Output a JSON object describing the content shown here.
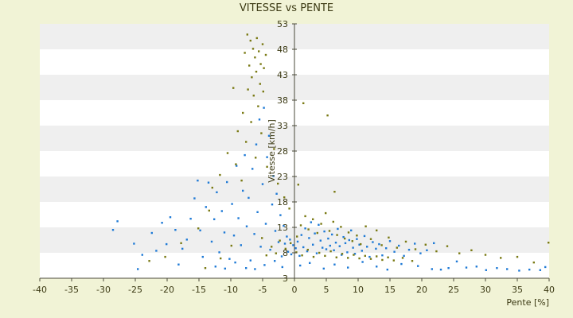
{
  "chart_data": {
    "type": "scatter",
    "title": "VITESSE vs PENTE",
    "xlabel": "Pente [%]",
    "ylabel": "Vitesse [km/h]",
    "xlim": [
      -40,
      40
    ],
    "ylim": [
      3,
      53
    ],
    "x_ticks": [
      -40,
      -35,
      -30,
      -25,
      -20,
      -15,
      -10,
      -5,
      0,
      5,
      10,
      15,
      20,
      25,
      30,
      35,
      40
    ],
    "y_ticks": [
      3,
      8,
      13,
      18,
      23,
      28,
      33,
      38,
      43,
      48,
      53
    ],
    "grid": "horizontal alternating bands",
    "legend": "none",
    "colors": {
      "background": "#f1f3d6",
      "plot_band_light": "#ffffff",
      "plot_band_dark": "#efefef",
      "axis": "#4a4a3a",
      "series_blue": "#1f7ad6",
      "series_olive": "#7a7a14"
    },
    "series": [
      {
        "color": "#1f7ad6",
        "points": [
          [
            -28.5,
            12.5
          ],
          [
            -27.8,
            14.2
          ],
          [
            -25.2,
            9.8
          ],
          [
            -24.6,
            4.8
          ],
          [
            -23.9,
            7.6
          ],
          [
            -22.4,
            11.9
          ],
          [
            -21.7,
            8.4
          ],
          [
            -20.8,
            13.9
          ],
          [
            -20.1,
            9.7
          ],
          [
            -19.5,
            15.0
          ],
          [
            -18.7,
            12.5
          ],
          [
            -18.2,
            5.7
          ],
          [
            -17.6,
            8.8
          ],
          [
            -16.9,
            10.6
          ],
          [
            -16.3,
            14.7
          ],
          [
            -15.7,
            18.7
          ],
          [
            -15.2,
            22.2
          ],
          [
            -14.8,
            12.4
          ],
          [
            -14.4,
            7.2
          ],
          [
            -13.9,
            17.0
          ],
          [
            -13.5,
            21.8
          ],
          [
            -13.0,
            10.2
          ],
          [
            -12.6,
            14.6
          ],
          [
            -12.2,
            19.9
          ],
          [
            -11.8,
            8.1
          ],
          [
            -11.4,
            16.2
          ],
          [
            -11.0,
            12.0
          ],
          [
            -10.6,
            21.9
          ],
          [
            -10.2,
            6.8
          ],
          [
            -9.8,
            17.6
          ],
          [
            -9.5,
            11.4
          ],
          [
            -9.1,
            25.1
          ],
          [
            -8.8,
            14.8
          ],
          [
            -8.4,
            9.5
          ],
          [
            -8.1,
            20.2
          ],
          [
            -7.8,
            27.2
          ],
          [
            -7.5,
            13.2
          ],
          [
            -7.2,
            18.8
          ],
          [
            -6.9,
            6.5
          ],
          [
            -6.6,
            24.5
          ],
          [
            -6.3,
            11.7
          ],
          [
            -6.0,
            29.3
          ],
          [
            -5.8,
            16.0
          ],
          [
            -5.5,
            34.2
          ],
          [
            -5.3,
            9.2
          ],
          [
            -5.0,
            21.5
          ],
          [
            -4.8,
            36.5
          ],
          [
            -4.5,
            13.7
          ],
          [
            -4.3,
            26.8
          ],
          [
            -4.0,
            31.0
          ],
          [
            -3.8,
            8.6
          ],
          [
            -3.5,
            17.5
          ],
          [
            -3.3,
            23.1
          ],
          [
            -3.0,
            12.3
          ],
          [
            -2.8,
            19.6
          ],
          [
            -2.5,
            10.1
          ],
          [
            -2.2,
            15.4
          ],
          [
            -2.0,
            7.3
          ],
          [
            -1.7,
            13.3
          ],
          [
            -1.5,
            9.8
          ],
          [
            -1.2,
            11.2
          ],
          [
            -1.0,
            8.2
          ],
          [
            -0.7,
            10.6
          ],
          [
            -0.5,
            7.7
          ],
          [
            -0.2,
            9.5
          ],
          [
            0.2,
            8.9
          ],
          [
            0.5,
            10.2
          ],
          [
            0.8,
            7.4
          ],
          [
            1.1,
            11.5
          ],
          [
            1.4,
            9.1
          ],
          [
            1.7,
            12.8
          ],
          [
            2.0,
            8.3
          ],
          [
            2.3,
            10.9
          ],
          [
            2.6,
            14.0
          ],
          [
            2.9,
            9.6
          ],
          [
            3.2,
            11.8
          ],
          [
            3.5,
            7.9
          ],
          [
            3.8,
            13.5
          ],
          [
            4.1,
            10.4
          ],
          [
            4.4,
            9.0
          ],
          [
            4.7,
            12.2
          ],
          [
            5.0,
            8.7
          ],
          [
            5.3,
            10.8
          ],
          [
            5.6,
            9.4
          ],
          [
            5.9,
            11.6
          ],
          [
            6.2,
            8.5
          ],
          [
            6.5,
            10.0
          ],
          [
            6.8,
            12.7
          ],
          [
            7.1,
            9.3
          ],
          [
            7.4,
            7.6
          ],
          [
            7.7,
            11.1
          ],
          [
            8.0,
            9.9
          ],
          [
            8.3,
            8.1
          ],
          [
            8.6,
            10.5
          ],
          [
            8.9,
            12.4
          ],
          [
            9.2,
            9.0
          ],
          [
            9.5,
            7.8
          ],
          [
            9.8,
            10.7
          ],
          [
            10.2,
            9.6
          ],
          [
            10.6,
            8.4
          ],
          [
            11.0,
            11.3
          ],
          [
            11.4,
            9.2
          ],
          [
            11.8,
            7.2
          ],
          [
            12.3,
            10.1
          ],
          [
            12.8,
            8.8
          ],
          [
            13.3,
            9.7
          ],
          [
            13.8,
            7.5
          ],
          [
            14.4,
            8.9
          ],
          [
            15.0,
            10.3
          ],
          [
            15.7,
            8.2
          ],
          [
            16.4,
            9.4
          ],
          [
            17.2,
            7.4
          ],
          [
            18.0,
            8.6
          ],
          [
            18.9,
            9.8
          ],
          [
            19.8,
            7.9
          ],
          [
            20.8,
            8.5
          ],
          [
            21.9,
            9.9
          ],
          [
            23.0,
            4.7
          ],
          [
            24.2,
            5.0
          ],
          [
            25.5,
            6.3
          ],
          [
            27.0,
            5.1
          ],
          [
            28.6,
            5.3
          ],
          [
            30.1,
            4.6
          ],
          [
            31.8,
            5.0
          ],
          [
            33.4,
            4.8
          ],
          [
            35.3,
            4.5
          ],
          [
            36.9,
            4.7
          ],
          [
            38.6,
            4.6
          ],
          [
            39.4,
            5.2
          ],
          [
            -12.4,
            5.3
          ],
          [
            -10.9,
            4.9
          ],
          [
            -9.3,
            6.1
          ],
          [
            -7.6,
            5.0
          ],
          [
            -6.2,
            4.8
          ],
          [
            -4.7,
            5.6
          ],
          [
            -3.1,
            6.4
          ],
          [
            -1.9,
            5.2
          ],
          [
            0.9,
            5.5
          ],
          [
            2.4,
            6.0
          ],
          [
            4.6,
            4.9
          ],
          [
            6.3,
            5.7
          ],
          [
            8.4,
            5.1
          ],
          [
            10.7,
            6.2
          ],
          [
            12.9,
            5.3
          ],
          [
            14.6,
            4.7
          ],
          [
            16.8,
            5.8
          ],
          [
            19.4,
            5.4
          ],
          [
            21.6,
            4.8
          ]
        ]
      },
      {
        "color": "#7a7a14",
        "points": [
          [
            -7.4,
            50.9
          ],
          [
            -6.9,
            49.7
          ],
          [
            -6.5,
            48.1
          ],
          [
            -6.2,
            46.4
          ],
          [
            -5.9,
            50.2
          ],
          [
            -5.6,
            47.6
          ],
          [
            -5.3,
            45.1
          ],
          [
            -5.0,
            49.0
          ],
          [
            -4.8,
            44.3
          ],
          [
            -4.5,
            46.9
          ],
          [
            -7.8,
            47.3
          ],
          [
            -7.1,
            44.8
          ],
          [
            -6.7,
            42.5
          ],
          [
            -6.0,
            43.6
          ],
          [
            -5.4,
            41.2
          ],
          [
            -4.9,
            39.7
          ],
          [
            -6.4,
            38.9
          ],
          [
            -5.7,
            36.8
          ],
          [
            -7.3,
            40.1
          ],
          [
            -8.1,
            35.5
          ],
          [
            -9.6,
            40.4
          ],
          [
            -6.8,
            33.7
          ],
          [
            -5.2,
            31.5
          ],
          [
            -7.6,
            29.8
          ],
          [
            -8.9,
            31.9
          ],
          [
            -10.5,
            27.6
          ],
          [
            -9.2,
            25.4
          ],
          [
            -11.7,
            23.3
          ],
          [
            -12.9,
            20.8
          ],
          [
            -8.3,
            22.2
          ],
          [
            -6.1,
            26.7
          ],
          [
            -4.3,
            24.9
          ],
          [
            -3.2,
            28.4
          ],
          [
            -2.6,
            21.6
          ],
          [
            -1.6,
            18.9
          ],
          [
            -0.8,
            16.7
          ],
          [
            0.6,
            21.4
          ],
          [
            1.4,
            37.4
          ],
          [
            5.2,
            35.0
          ],
          [
            6.3,
            20.0
          ],
          [
            -13.4,
            16.3
          ],
          [
            -15.1,
            12.8
          ],
          [
            -17.8,
            9.9
          ],
          [
            -20.3,
            7.2
          ],
          [
            -22.8,
            6.4
          ],
          [
            -9.9,
            9.4
          ],
          [
            -11.6,
            6.9
          ],
          [
            -14.0,
            5.0
          ],
          [
            0.4,
            11.2
          ],
          [
            1.0,
            13.4
          ],
          [
            1.7,
            15.2
          ],
          [
            2.2,
            12.6
          ],
          [
            2.9,
            14.6
          ],
          [
            3.6,
            11.9
          ],
          [
            4.2,
            13.7
          ],
          [
            4.9,
            15.8
          ],
          [
            5.5,
            12.3
          ],
          [
            6.1,
            14.1
          ],
          [
            6.7,
            11.5
          ],
          [
            7.3,
            13.1
          ],
          [
            7.9,
            10.8
          ],
          [
            8.5,
            12.0
          ],
          [
            9.1,
            10.3
          ],
          [
            9.8,
            11.4
          ],
          [
            10.4,
            9.7
          ],
          [
            11.2,
            13.2
          ],
          [
            12.0,
            10.7
          ],
          [
            12.9,
            12.4
          ],
          [
            13.7,
            9.5
          ],
          [
            14.8,
            11.0
          ],
          [
            16.1,
            9.0
          ],
          [
            17.5,
            10.2
          ],
          [
            19.0,
            8.7
          ],
          [
            20.6,
            9.6
          ],
          [
            22.3,
            8.3
          ],
          [
            24.0,
            9.3
          ],
          [
            25.9,
            7.9
          ],
          [
            27.8,
            8.5
          ],
          [
            30.0,
            7.6
          ],
          [
            32.4,
            7.0
          ],
          [
            35.0,
            7.2
          ],
          [
            37.6,
            6.1
          ],
          [
            39.9,
            10.0
          ],
          [
            0.3,
            8.1
          ],
          [
            1.2,
            7.5
          ],
          [
            2.1,
            8.6
          ],
          [
            3.0,
            7.2
          ],
          [
            3.9,
            8.0
          ],
          [
            4.8,
            7.4
          ],
          [
            5.7,
            8.3
          ],
          [
            6.6,
            7.1
          ],
          [
            7.5,
            7.8
          ],
          [
            8.4,
            7.0
          ],
          [
            9.3,
            7.6
          ],
          [
            10.2,
            6.9
          ],
          [
            11.1,
            7.4
          ],
          [
            12.0,
            6.8
          ],
          [
            12.9,
            7.3
          ],
          [
            13.8,
            6.6
          ],
          [
            14.7,
            7.1
          ],
          [
            15.6,
            6.5
          ],
          [
            17.0,
            7.0
          ],
          [
            18.5,
            6.4
          ],
          [
            -3.6,
            9.2
          ],
          [
            -2.9,
            7.9
          ],
          [
            -2.3,
            10.4
          ],
          [
            -1.4,
            8.8
          ],
          [
            -0.6,
            9.9
          ],
          [
            -4.4,
            7.5
          ],
          [
            -5.1,
            10.9
          ]
        ]
      }
    ]
  }
}
